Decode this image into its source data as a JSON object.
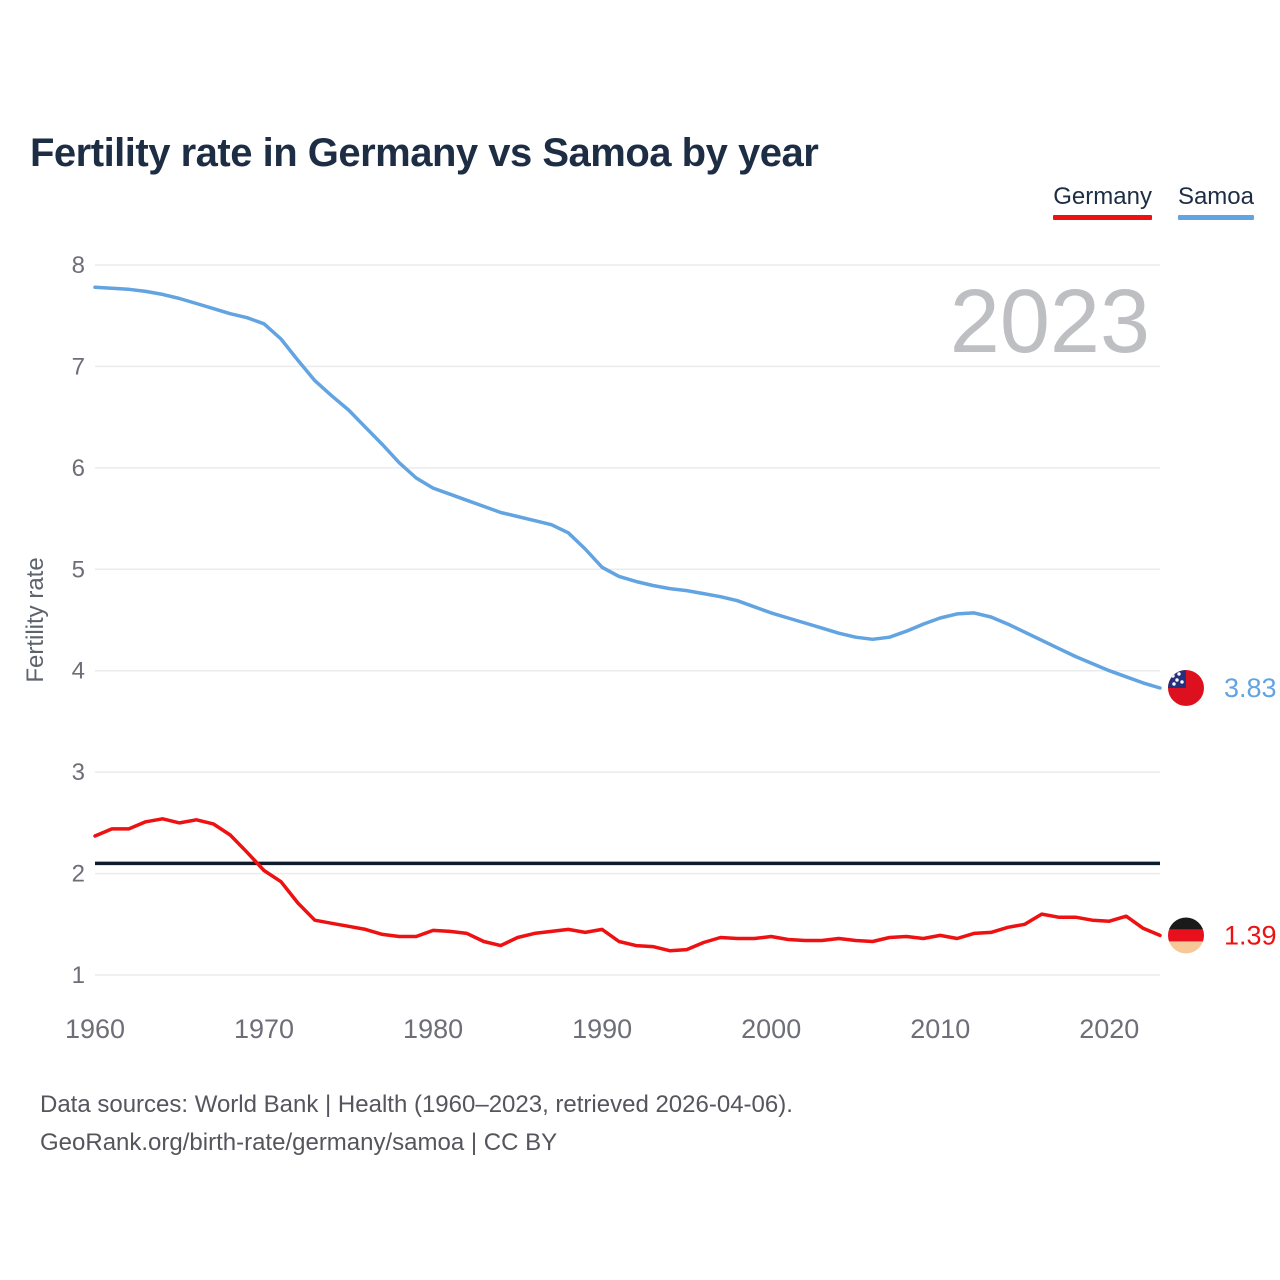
{
  "title": "Fertility rate in Germany vs Samoa by year",
  "legend": [
    {
      "label": "Germany",
      "color": "#ee1111"
    },
    {
      "label": "Samoa",
      "color": "#62a3e1"
    }
  ],
  "footer": {
    "line1": "Data sources: World Bank | Health (1960–2023, retrieved 2026-04-06).",
    "line2": "GeoRank.org/birth-rate/germany/samoa | CC BY"
  },
  "chart_data": {
    "type": "line",
    "title": "Fertility rate in Germany vs Samoa by year",
    "xlabel": "",
    "ylabel": "Fertility rate",
    "watermark": "2023",
    "ylim": [
      1,
      8
    ],
    "yticks": [
      1,
      2,
      3,
      4,
      5,
      6,
      7,
      8
    ],
    "xticks": [
      1960,
      1970,
      1980,
      1990,
      2000,
      2010,
      2020
    ],
    "x_range": [
      1960,
      2023
    ],
    "grid": "horizontal",
    "legend_position": "top-right",
    "reference_line": {
      "value": 2.1,
      "color": "#101c2e"
    },
    "x": [
      1960,
      1961,
      1962,
      1963,
      1964,
      1965,
      1966,
      1967,
      1968,
      1969,
      1970,
      1971,
      1972,
      1973,
      1974,
      1975,
      1976,
      1977,
      1978,
      1979,
      1980,
      1981,
      1982,
      1983,
      1984,
      1985,
      1986,
      1987,
      1988,
      1989,
      1990,
      1991,
      1992,
      1993,
      1994,
      1995,
      1996,
      1997,
      1998,
      1999,
      2000,
      2001,
      2002,
      2003,
      2004,
      2005,
      2006,
      2007,
      2008,
      2009,
      2010,
      2011,
      2012,
      2013,
      2014,
      2015,
      2016,
      2017,
      2018,
      2019,
      2020,
      2021,
      2022,
      2023
    ],
    "series": [
      {
        "name": "Samoa",
        "color": "#62a3e1",
        "flag": "samoa",
        "end_label": "3.83",
        "values": [
          7.78,
          7.77,
          7.76,
          7.74,
          7.71,
          7.67,
          7.62,
          7.57,
          7.52,
          7.48,
          7.42,
          7.27,
          7.06,
          6.86,
          6.71,
          6.57,
          6.4,
          6.23,
          6.05,
          5.9,
          5.8,
          5.74,
          5.68,
          5.62,
          5.56,
          5.52,
          5.48,
          5.44,
          5.36,
          5.2,
          5.02,
          4.93,
          4.88,
          4.84,
          4.81,
          4.79,
          4.76,
          4.73,
          4.69,
          4.63,
          4.57,
          4.52,
          4.47,
          4.42,
          4.37,
          4.33,
          4.31,
          4.33,
          4.39,
          4.46,
          4.52,
          4.56,
          4.57,
          4.53,
          4.46,
          4.38,
          4.3,
          4.22,
          4.14,
          4.07,
          4.0,
          3.94,
          3.88,
          3.83
        ]
      },
      {
        "name": "Germany",
        "color": "#ee1111",
        "flag": "germany",
        "end_label": "1.39",
        "values": [
          2.37,
          2.44,
          2.44,
          2.51,
          2.54,
          2.5,
          2.53,
          2.49,
          2.38,
          2.21,
          2.03,
          1.92,
          1.71,
          1.54,
          1.51,
          1.48,
          1.45,
          1.4,
          1.38,
          1.38,
          1.44,
          1.43,
          1.41,
          1.33,
          1.29,
          1.37,
          1.41,
          1.43,
          1.45,
          1.42,
          1.45,
          1.33,
          1.29,
          1.28,
          1.24,
          1.25,
          1.32,
          1.37,
          1.36,
          1.36,
          1.38,
          1.35,
          1.34,
          1.34,
          1.36,
          1.34,
          1.33,
          1.37,
          1.38,
          1.36,
          1.39,
          1.36,
          1.41,
          1.42,
          1.47,
          1.5,
          1.6,
          1.57,
          1.57,
          1.54,
          1.53,
          1.58,
          1.46,
          1.39
        ]
      }
    ],
    "flag_colors": {
      "samoa": {
        "red": "#dc101f",
        "blue": "#25317d",
        "star": "#ffffff"
      },
      "germany": {
        "black": "#1a1a1a",
        "red": "#e8101c",
        "gold": "#f7c897"
      }
    },
    "style": {
      "grid_color": "#ebebee",
      "axis_text_color": "#6e6e78",
      "watermark_color": "#bebfc3"
    }
  }
}
